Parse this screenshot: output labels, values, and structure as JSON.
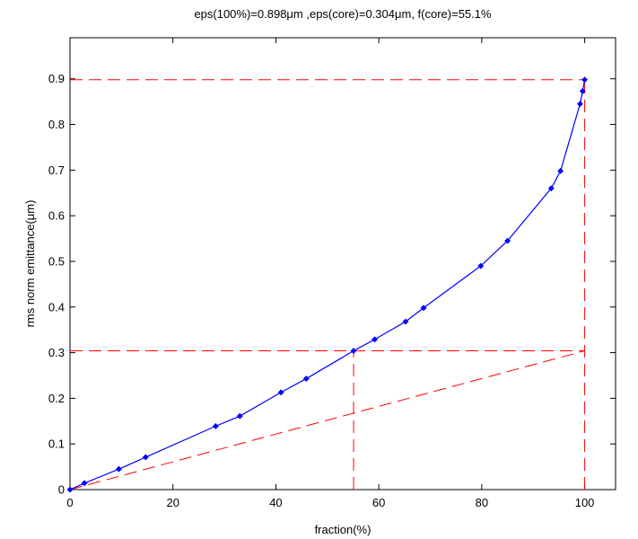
{
  "chart_data": {
    "type": "line",
    "title": "eps(100%)=0.898μm ,eps(core)=0.304μm, f(core)=55.1%",
    "xlabel": "fraction(%)",
    "ylabel": "rms norm emittance(μm)",
    "xlim": [
      0,
      106
    ],
    "ylim": [
      0,
      0.99
    ],
    "x_ticks": [
      0,
      20,
      40,
      60,
      80,
      100
    ],
    "y_ticks": [
      0,
      0.1,
      0.2,
      0.3,
      0.4,
      0.5,
      0.6,
      0.7,
      0.8,
      0.9
    ],
    "x_tick_labels": [
      "0",
      "20",
      "40",
      "60",
      "80",
      "100"
    ],
    "y_tick_labels": [
      "0",
      "0.1",
      "0.2",
      "0.3",
      "0.4",
      "0.5",
      "0.6",
      "0.7",
      "0.8",
      "0.9"
    ],
    "grid": false,
    "series": [
      {
        "color": "#0000ff",
        "marker": "diamond",
        "x": [
          0,
          2.8,
          9.5,
          14.7,
          28.3,
          33.0,
          41.0,
          45.9,
          55.1,
          59.2,
          65.2,
          68.7,
          79.8,
          85.0,
          93.5,
          95.3,
          99.1,
          99.6,
          100
        ],
        "y": [
          0,
          0.014,
          0.045,
          0.071,
          0.139,
          0.161,
          0.213,
          0.243,
          0.304,
          0.329,
          0.368,
          0.398,
          0.49,
          0.545,
          0.66,
          0.698,
          0.845,
          0.873,
          0.898
        ]
      }
    ],
    "reference_lines": {
      "color": "#ff0000",
      "style": "dashed",
      "eps_total": 0.898,
      "eps_core": 0.304,
      "f_core": 55.1,
      "x_full": 100
    }
  }
}
